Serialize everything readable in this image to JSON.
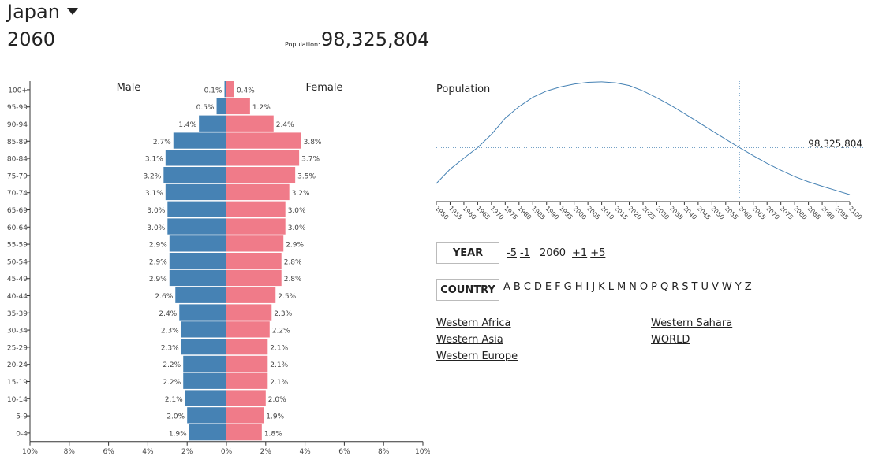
{
  "header": {
    "country": "Japan",
    "year": "2060",
    "population_label": "Population:",
    "population_value": "98,325,804"
  },
  "pyramid": {
    "male_label": "Male",
    "female_label": "Female",
    "x_ticks": [
      "10%",
      "8%",
      "6%",
      "4%",
      "2%",
      "0%",
      "2%",
      "4%",
      "6%",
      "8%",
      "10%"
    ],
    "age_groups": [
      "100+",
      "95-99",
      "90-94",
      "85-89",
      "80-84",
      "75-79",
      "70-74",
      "65-69",
      "60-64",
      "55-59",
      "50-54",
      "45-49",
      "40-44",
      "35-39",
      "30-34",
      "25-29",
      "20-24",
      "15-19",
      "10-14",
      "5-9",
      "0-4"
    ],
    "male": [
      0.1,
      0.5,
      1.4,
      2.7,
      3.1,
      3.2,
      3.1,
      3.0,
      3.0,
      2.9,
      2.9,
      2.9,
      2.6,
      2.4,
      2.3,
      2.3,
      2.2,
      2.2,
      2.1,
      2.0,
      1.9
    ],
    "female": [
      0.4,
      1.2,
      2.4,
      3.8,
      3.7,
      3.5,
      3.2,
      3.0,
      3.0,
      2.9,
      2.8,
      2.8,
      2.5,
      2.3,
      2.2,
      2.1,
      2.1,
      2.1,
      2.0,
      1.9,
      1.8
    ],
    "male_color": "#4682b4",
    "female_color": "#f07b89"
  },
  "chart_data": {
    "type": "line",
    "title": "Population",
    "x": [
      1950,
      1955,
      1960,
      1965,
      1970,
      1975,
      1980,
      1985,
      1990,
      1995,
      2000,
      2005,
      2010,
      2015,
      2020,
      2025,
      2030,
      2035,
      2040,
      2045,
      2050,
      2055,
      2060,
      2065,
      2070,
      2075,
      2080,
      2085,
      2090,
      2095,
      2100
    ],
    "y": [
      82.8,
      89.0,
      93.7,
      98.3,
      104.0,
      111.0,
      116.0,
      120.0,
      122.7,
      124.5,
      125.7,
      126.5,
      126.7,
      126.3,
      125.1,
      122.8,
      119.8,
      116.6,
      113.0,
      109.3,
      105.6,
      101.9,
      98.3,
      94.8,
      91.5,
      88.5,
      85.8,
      83.5,
      81.6,
      79.8,
      78.0
    ],
    "xlim": [
      1950,
      2100
    ],
    "ylim": [
      76,
      127
    ],
    "selected_year": 2060,
    "selected_label": "98,325,804",
    "line_color": "#4682b4"
  },
  "controls": {
    "year_button": "YEAR",
    "year_steps": [
      "-5",
      "-1",
      "+1",
      "+5"
    ],
    "current_year": "2060",
    "country_button": "COUNTRY",
    "letters": [
      "A",
      "B",
      "C",
      "D",
      "E",
      "F",
      "G",
      "H",
      "I",
      "J",
      "K",
      "L",
      "M",
      "N",
      "O",
      "P",
      "Q",
      "R",
      "S",
      "T",
      "U",
      "V",
      "W",
      "Y",
      "Z"
    ]
  },
  "regions": [
    "Western Africa",
    "Western Asia",
    "Western Europe",
    "Western Sahara",
    "WORLD"
  ]
}
